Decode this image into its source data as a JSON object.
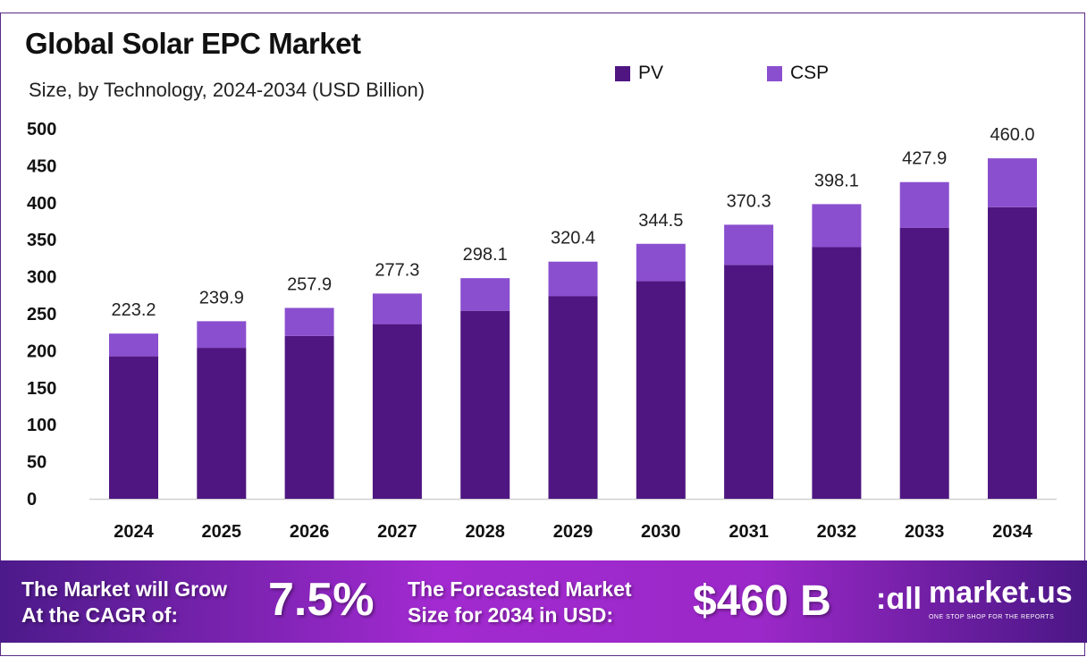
{
  "title": "Global Solar EPC Market",
  "subtitle": "Size, by Technology, 2024-2034 (USD Billion)",
  "colors": {
    "PV": "#4f1681",
    "CSP": "#8a4fcf"
  },
  "chart_data": {
    "type": "bar",
    "stacked": true,
    "categories": [
      "2024",
      "2025",
      "2026",
      "2027",
      "2028",
      "2029",
      "2030",
      "2031",
      "2032",
      "2033",
      "2034"
    ],
    "series": [
      {
        "name": "PV",
        "values": [
          192.5,
          204,
          220,
          236,
          254,
          274,
          294,
          316,
          340,
          366,
          394
        ]
      },
      {
        "name": "CSP",
        "values": [
          30.7,
          35.9,
          37.9,
          41.3,
          44.1,
          46.4,
          50.5,
          54.3,
          58.1,
          61.9,
          66.0
        ]
      }
    ],
    "totals": [
      "223.2",
      "239.9",
      "257.9",
      "277.3",
      "298.1",
      "320.4",
      "344.5",
      "370.3",
      "398.1",
      "427.9",
      "460.0"
    ],
    "yticks": [
      "0",
      "50",
      "100",
      "150",
      "200",
      "250",
      "300",
      "350",
      "400",
      "450",
      "500"
    ],
    "ylim": [
      0,
      500
    ],
    "grid": false,
    "legend": "top-right"
  },
  "footer": {
    "cagr_label_1": "The Market will Grow",
    "cagr_label_2": "At the CAGR of:",
    "cagr_value": "7.5%",
    "forecast_label_1": "The Forecasted Market",
    "forecast_label_2": "Size for 2034 in USD:",
    "forecast_value": "$460 B",
    "logo_name": "market.us",
    "logo_tagline": "ONE STOP SHOP FOR THE REPORTS"
  }
}
